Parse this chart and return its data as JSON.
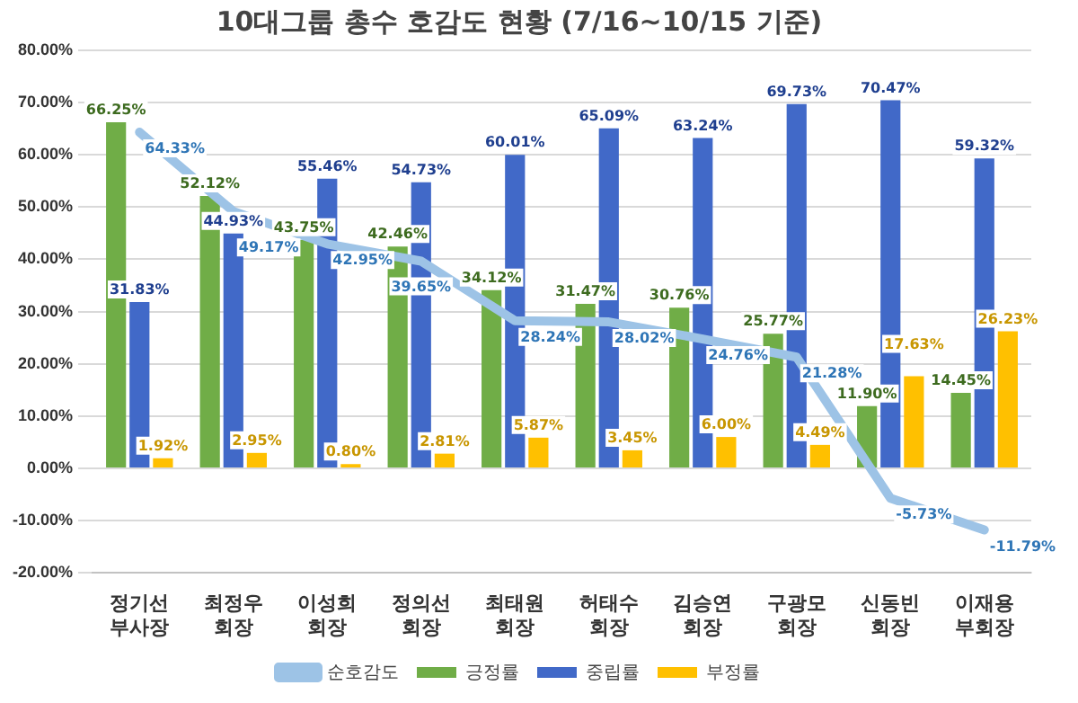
{
  "chart_data": {
    "type": "bar",
    "title": "10대그룹 총수 호감도 현황 (7/16~10/15 기준)",
    "categories": [
      "정기선 부사장",
      "최정우 회장",
      "이성희 회장",
      "정의선 회장",
      "최태원 회장",
      "허태수 회장",
      "김승연 회장",
      "구광모 회장",
      "신동빈 회장",
      "이재용 부회장"
    ],
    "series": [
      {
        "name": "긍정률",
        "color": "#70ad47",
        "values": [
          66.25,
          52.12,
          43.75,
          42.46,
          34.12,
          31.47,
          30.76,
          25.77,
          11.9,
          14.45
        ],
        "value_labels": [
          "66.25%",
          "52.12%",
          "43.75%",
          "42.46%",
          "34.12%",
          "31.47%",
          "30.76%",
          "25.77%",
          "11.90%",
          "14.45%"
        ]
      },
      {
        "name": "중립률",
        "color": "#4169c8",
        "values": [
          31.83,
          44.93,
          55.46,
          54.73,
          60.01,
          65.09,
          63.24,
          69.73,
          70.47,
          59.32
        ],
        "value_labels": [
          "31.83%",
          "44.93%",
          "55.46%",
          "54.73%",
          "60.01%",
          "65.09%",
          "63.24%",
          "69.73%",
          "70.47%",
          "59.32%"
        ]
      },
      {
        "name": "부정률",
        "color": "#ffc000",
        "values": [
          1.92,
          2.95,
          0.8,
          2.81,
          5.87,
          3.45,
          6.0,
          4.49,
          17.63,
          26.23
        ],
        "value_labels": [
          "1.92%",
          "2.95%",
          "0.80%",
          "2.81%",
          "5.87%",
          "3.45%",
          "6.00%",
          "4.49%",
          "17.63%",
          "26.23%"
        ]
      },
      {
        "name": "순호감도",
        "type": "line",
        "color": "#9dc3e6",
        "marker": "none",
        "values": [
          64.33,
          49.17,
          42.95,
          39.65,
          28.24,
          28.02,
          24.76,
          21.28,
          -5.73,
          -11.79
        ],
        "value_labels": [
          "64.33%",
          "49.17%",
          "42.95%",
          "39.65%",
          "28.24%",
          "28.02%",
          "24.76%",
          "21.28%",
          "-5.73%",
          "-11.79%"
        ]
      }
    ],
    "ylim": [
      -20,
      80
    ],
    "yticks": [
      {
        "value": -20,
        "label": "-20.00%"
      },
      {
        "value": -10,
        "label": "-10.00%"
      },
      {
        "value": 0,
        "label": "0.00%"
      },
      {
        "value": 10,
        "label": "10.00%"
      },
      {
        "value": 20,
        "label": "20.00%"
      },
      {
        "value": 30,
        "label": "30.00%"
      },
      {
        "value": 40,
        "label": "40.00%"
      },
      {
        "value": 50,
        "label": "50.00%"
      },
      {
        "value": 60,
        "label": "60.00%"
      },
      {
        "value": 70,
        "label": "70.00%"
      },
      {
        "value": 80,
        "label": "80.00%"
      }
    ],
    "grid": "y",
    "legend": "bottom"
  }
}
